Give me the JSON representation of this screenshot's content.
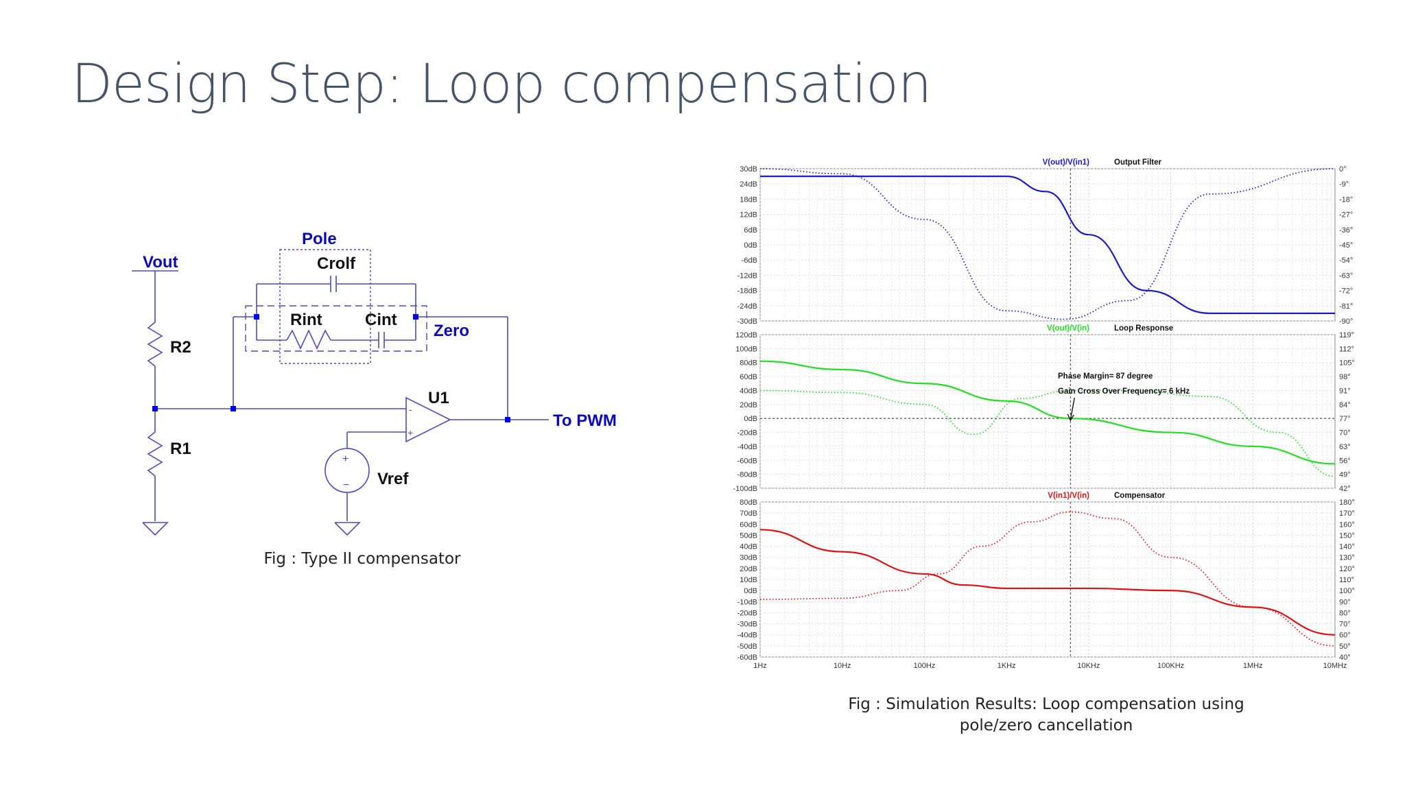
{
  "slide": {
    "title": "Design Step: Loop compensation"
  },
  "circuit": {
    "vout": "Vout",
    "pole": "Pole",
    "zero": "Zero",
    "crolf": "Crolf",
    "rint": "Rint",
    "cint": "Cint",
    "r2": "R2",
    "r1": "R1",
    "u1": "U1",
    "to_pwm": "To PWM",
    "vref": "Vref",
    "opamp_minus": "-",
    "opamp_plus": "+",
    "src_plus": "+",
    "src_minus": "−",
    "caption": "Fig : Type II compensator"
  },
  "colors": {
    "wire": "#4a4ab8",
    "label_blue": "#0a0ab4",
    "output_filter": "#1a1acc",
    "loop_response": "#22dd22",
    "compensator": "#dd1111",
    "title": "#44546a"
  },
  "results_caption": {
    "line1": "Fig : Simulation Results: Loop compensation using",
    "line2": "pole/zero cancellation"
  },
  "chart_data": [
    {
      "type": "line",
      "title": "Output Filter",
      "trace_label": "V(out)/V(in1)",
      "x_axis": "log frequency (Hz), shared",
      "y_ticks_left": [
        "30dB",
        "24dB",
        "18dB",
        "12dB",
        "6dB",
        "0dB",
        "-6dB",
        "-12dB",
        "-18dB",
        "-24dB",
        "-30dB"
      ],
      "y_ticks_right": [
        "0°",
        "-9°",
        "-18°",
        "-27°",
        "-36°",
        "-45°",
        "-54°",
        "-63°",
        "-72°",
        "-81°",
        "-90°"
      ],
      "ylim_db": [
        -30,
        30
      ],
      "ylim_phase": [
        -90,
        0
      ],
      "series": [
        {
          "name": "magnitude (solid)",
          "unit": "dB",
          "x": [
            1,
            1000,
            3000,
            10000,
            50000,
            300000,
            10000000
          ],
          "values": [
            27,
            27,
            21,
            4,
            -18,
            -27,
            -27
          ]
        },
        {
          "name": "phase (dotted)",
          "unit": "deg",
          "x": [
            1,
            10,
            100,
            1000,
            5000,
            30000,
            300000,
            10000000
          ],
          "values": [
            0,
            -3,
            -30,
            -84,
            -89,
            -78,
            -15,
            0
          ]
        }
      ]
    },
    {
      "type": "line",
      "title": "Loop Response",
      "trace_label": "V(out)/V(in)",
      "annotations": [
        "Phase Margin= 87 degree",
        "Gain Cross Over Frequency= 6 kHz"
      ],
      "y_ticks_left": [
        "120dB",
        "100dB",
        "80dB",
        "60dB",
        "40dB",
        "20dB",
        "0dB",
        "-20dB",
        "-40dB",
        "-60dB",
        "-80dB",
        "-100dB"
      ],
      "y_ticks_right": [
        "119°",
        "112°",
        "105°",
        "98°",
        "91°",
        "84°",
        "77°",
        "70°",
        "63°",
        "56°",
        "49°",
        "42°"
      ],
      "ylim_db": [
        -100,
        120
      ],
      "ylim_phase": [
        42,
        119
      ],
      "series": [
        {
          "name": "magnitude (solid)",
          "unit": "dB",
          "x": [
            1,
            10,
            100,
            1000,
            6000,
            100000,
            1000000,
            10000000
          ],
          "values": [
            82,
            70,
            50,
            25,
            0,
            -20,
            -40,
            -65
          ]
        },
        {
          "name": "phase (dotted)",
          "unit": "deg",
          "x": [
            1,
            10,
            100,
            400,
            1500,
            6000,
            30000,
            300000,
            2000000,
            10000000
          ],
          "values": [
            91,
            90,
            84,
            69,
            87,
            91,
            91,
            88,
            70,
            48
          ]
        }
      ]
    },
    {
      "type": "line",
      "title": "Compensator",
      "trace_label": "V(in1)/V(in)",
      "x_ticks": [
        "1Hz",
        "10Hz",
        "100Hz",
        "1KHz",
        "10KHz",
        "100KHz",
        "1MHz",
        "10MHz"
      ],
      "y_ticks_left": [
        "80dB",
        "70dB",
        "60dB",
        "50dB",
        "40dB",
        "30dB",
        "20dB",
        "10dB",
        "0dB",
        "-10dB",
        "-20dB",
        "-30dB",
        "-40dB",
        "-50dB",
        "-60dB"
      ],
      "y_ticks_right": [
        "180°",
        "170°",
        "160°",
        "150°",
        "140°",
        "130°",
        "120°",
        "110°",
        "100°",
        "90°",
        "80°",
        "70°",
        "60°",
        "50°",
        "40°"
      ],
      "ylim_db": [
        -60,
        80
      ],
      "ylim_phase": [
        40,
        180
      ],
      "series": [
        {
          "name": "magnitude (solid)",
          "unit": "dB",
          "x": [
            1,
            10,
            100,
            300,
            1000,
            10000,
            100000,
            1000000,
            10000000
          ],
          "values": [
            55,
            35,
            15,
            5,
            2,
            2,
            0,
            -15,
            -40
          ]
        },
        {
          "name": "phase (dotted)",
          "unit": "deg",
          "x": [
            1,
            10,
            50,
            150,
            500,
            2000,
            6000,
            20000,
            100000,
            1000000,
            10000000
          ],
          "values": [
            92,
            93,
            100,
            115,
            140,
            162,
            171,
            165,
            130,
            85,
            50
          ]
        }
      ]
    }
  ]
}
